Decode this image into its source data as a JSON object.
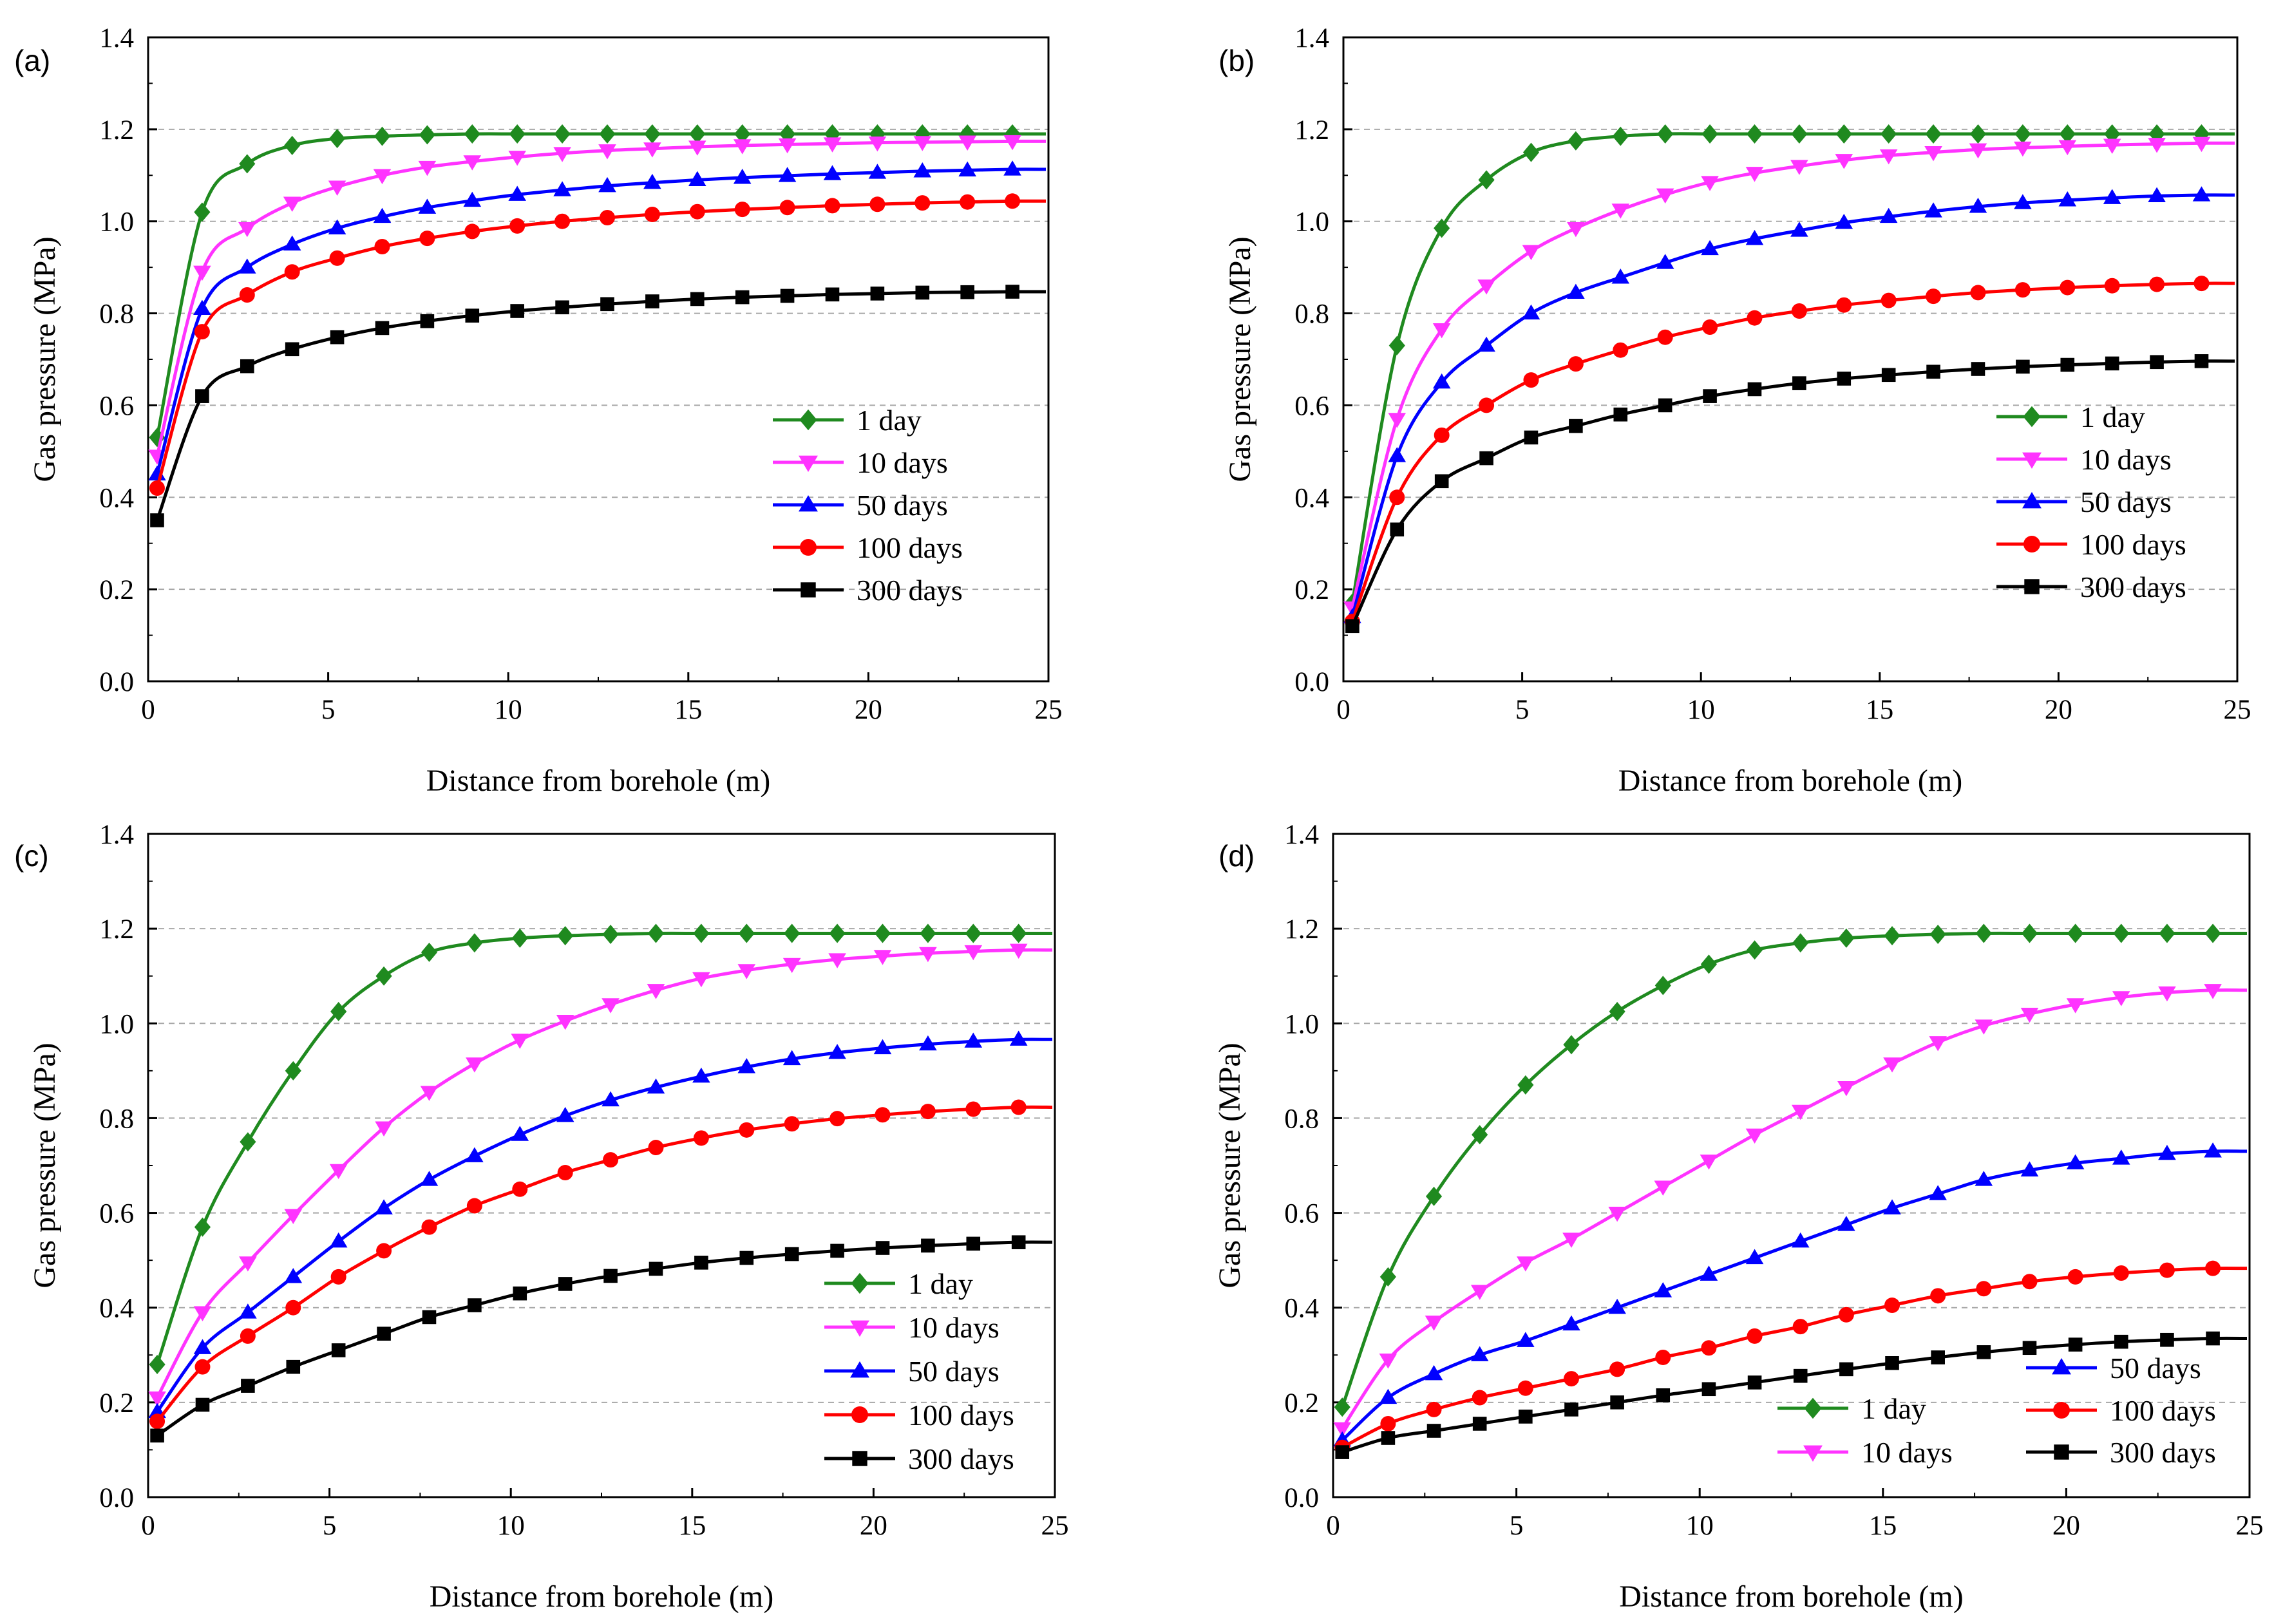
{
  "figure": {
    "series_styles": [
      {
        "name": "1 day",
        "color": "#1f8a1f",
        "marker": "diamond"
      },
      {
        "name": "10 days",
        "color": "#ff33ff",
        "marker": "triangle-down"
      },
      {
        "name": "50 days",
        "color": "#0000ff",
        "marker": "triangle-up"
      },
      {
        "name": "100 days",
        "color": "#ff0000",
        "marker": "circle"
      },
      {
        "name": "300 days",
        "color": "#000000",
        "marker": "square"
      }
    ]
  },
  "chart_data": [
    {
      "panel": "(a)",
      "type": "line",
      "xlabel": "Distance from borehole (m)",
      "ylabel": "Gas pressure (MPa)",
      "xlim": [
        0,
        25
      ],
      "ylim": [
        0,
        1.4
      ],
      "xticks": [
        "0",
        "5",
        "10",
        "15",
        "20",
        "25"
      ],
      "yticks": [
        "0.0",
        "0.2",
        "0.4",
        "0.6",
        "0.8",
        "1.0",
        "1.2",
        "1.4"
      ],
      "grid": "horizontal-dashed",
      "legend": {
        "position": "center-right",
        "layout": "column",
        "order": [
          "1 day",
          "10 days",
          "50 days",
          "100 days",
          "300 days"
        ]
      },
      "x": [
        0.25,
        1.5,
        2.75,
        4.0,
        5.25,
        6.5,
        7.75,
        9.0,
        10.25,
        11.5,
        12.75,
        14.0,
        15.25,
        16.5,
        17.75,
        19.0,
        20.25,
        21.5,
        22.75,
        24.0
      ],
      "series": [
        {
          "name": "1 day",
          "values": [
            0.53,
            1.02,
            1.125,
            1.165,
            1.18,
            1.185,
            1.188,
            1.19,
            1.19,
            1.19,
            1.19,
            1.19,
            1.19,
            1.19,
            1.19,
            1.19,
            1.19,
            1.19,
            1.19,
            1.19
          ]
        },
        {
          "name": "10 days",
          "values": [
            0.49,
            0.89,
            0.985,
            1.04,
            1.075,
            1.1,
            1.118,
            1.13,
            1.14,
            1.148,
            1.154,
            1.158,
            1.162,
            1.165,
            1.167,
            1.169,
            1.171,
            1.172,
            1.173,
            1.174
          ]
        },
        {
          "name": "50 days",
          "values": [
            0.45,
            0.81,
            0.9,
            0.95,
            0.985,
            1.01,
            1.03,
            1.045,
            1.058,
            1.068,
            1.077,
            1.084,
            1.09,
            1.095,
            1.099,
            1.103,
            1.106,
            1.109,
            1.111,
            1.113
          ]
        },
        {
          "name": "100 days",
          "values": [
            0.42,
            0.76,
            0.84,
            0.89,
            0.92,
            0.945,
            0.963,
            0.978,
            0.99,
            1.0,
            1.008,
            1.015,
            1.021,
            1.026,
            1.03,
            1.034,
            1.037,
            1.04,
            1.042,
            1.044
          ]
        },
        {
          "name": "300 days",
          "values": [
            0.35,
            0.62,
            0.685,
            0.722,
            0.748,
            0.768,
            0.783,
            0.795,
            0.805,
            0.813,
            0.82,
            0.826,
            0.831,
            0.835,
            0.838,
            0.841,
            0.843,
            0.845,
            0.846,
            0.847
          ]
        }
      ]
    },
    {
      "panel": "(b)",
      "type": "line",
      "xlabel": "Distance from borehole (m)",
      "ylabel": "Gas pressure (MPa)",
      "xlim": [
        0,
        25
      ],
      "ylim": [
        0,
        1.4
      ],
      "xticks": [
        "0",
        "5",
        "10",
        "15",
        "20",
        "25"
      ],
      "yticks": [
        "0.0",
        "0.2",
        "0.4",
        "0.6",
        "0.8",
        "1.0",
        "1.2",
        "1.4"
      ],
      "grid": "horizontal-dashed",
      "legend": {
        "position": "center-right",
        "layout": "column",
        "order": [
          "1 day",
          "10 days",
          "50 days",
          "100 days",
          "300 days"
        ]
      },
      "x": [
        0.25,
        1.5,
        2.75,
        4.0,
        5.25,
        6.5,
        7.75,
        9.0,
        10.25,
        11.5,
        12.75,
        14.0,
        15.25,
        16.5,
        17.75,
        19.0,
        20.25,
        21.5,
        22.75,
        24.0
      ],
      "series": [
        {
          "name": "1 day",
          "values": [
            0.17,
            0.73,
            0.985,
            1.09,
            1.15,
            1.175,
            1.185,
            1.19,
            1.19,
            1.19,
            1.19,
            1.19,
            1.19,
            1.19,
            1.19,
            1.19,
            1.19,
            1.19,
            1.19,
            1.19
          ]
        },
        {
          "name": "10 days",
          "values": [
            0.16,
            0.57,
            0.765,
            0.86,
            0.935,
            0.985,
            1.025,
            1.058,
            1.085,
            1.105,
            1.12,
            1.133,
            1.143,
            1.15,
            1.156,
            1.16,
            1.163,
            1.166,
            1.168,
            1.17
          ]
        },
        {
          "name": "50 days",
          "values": [
            0.14,
            0.49,
            0.65,
            0.73,
            0.8,
            0.845,
            0.878,
            0.91,
            0.94,
            0.962,
            0.98,
            0.997,
            1.01,
            1.022,
            1.032,
            1.04,
            1.046,
            1.051,
            1.055,
            1.057
          ]
        },
        {
          "name": "100 days",
          "values": [
            0.13,
            0.4,
            0.535,
            0.6,
            0.655,
            0.69,
            0.72,
            0.748,
            0.77,
            0.79,
            0.805,
            0.818,
            0.828,
            0.837,
            0.845,
            0.851,
            0.856,
            0.86,
            0.863,
            0.865
          ]
        },
        {
          "name": "300 days",
          "values": [
            0.12,
            0.33,
            0.435,
            0.485,
            0.53,
            0.555,
            0.58,
            0.6,
            0.62,
            0.635,
            0.648,
            0.658,
            0.666,
            0.673,
            0.679,
            0.684,
            0.688,
            0.691,
            0.694,
            0.696
          ]
        }
      ]
    },
    {
      "panel": "(c)",
      "type": "line",
      "xlabel": "Distance from borehole (m)",
      "ylabel": "Gas pressure (MPa)",
      "xlim": [
        0,
        25
      ],
      "ylim": [
        0,
        1.4
      ],
      "xticks": [
        "0",
        "5",
        "10",
        "15",
        "20",
        "25"
      ],
      "yticks": [
        "0.0",
        "0.2",
        "0.4",
        "0.6",
        "0.8",
        "1.0",
        "1.2",
        "1.4"
      ],
      "grid": "horizontal-dashed",
      "legend": {
        "position": "bottom-right",
        "layout": "column",
        "order": [
          "1 day",
          "10 days",
          "50 days",
          "100 days",
          "300 days"
        ]
      },
      "x": [
        0.25,
        1.5,
        2.75,
        4.0,
        5.25,
        6.5,
        7.75,
        9.0,
        10.25,
        11.5,
        12.75,
        14.0,
        15.25,
        16.5,
        17.75,
        19.0,
        20.25,
        21.5,
        22.75,
        24.0
      ],
      "series": [
        {
          "name": "1 day",
          "values": [
            0.28,
            0.57,
            0.75,
            0.9,
            1.025,
            1.1,
            1.15,
            1.17,
            1.18,
            1.185,
            1.188,
            1.19,
            1.19,
            1.19,
            1.19,
            1.19,
            1.19,
            1.19,
            1.19,
            1.19
          ]
        },
        {
          "name": "10 days",
          "values": [
            0.21,
            0.39,
            0.495,
            0.595,
            0.69,
            0.78,
            0.855,
            0.915,
            0.965,
            1.005,
            1.04,
            1.07,
            1.095,
            1.112,
            1.125,
            1.135,
            1.142,
            1.148,
            1.152,
            1.155
          ]
        },
        {
          "name": "50 days",
          "values": [
            0.18,
            0.315,
            0.39,
            0.465,
            0.54,
            0.61,
            0.67,
            0.72,
            0.765,
            0.805,
            0.838,
            0.865,
            0.888,
            0.908,
            0.925,
            0.938,
            0.948,
            0.956,
            0.962,
            0.966
          ]
        },
        {
          "name": "100 days",
          "values": [
            0.16,
            0.275,
            0.34,
            0.4,
            0.465,
            0.52,
            0.57,
            0.615,
            0.65,
            0.685,
            0.712,
            0.738,
            0.758,
            0.775,
            0.788,
            0.799,
            0.807,
            0.814,
            0.819,
            0.823
          ]
        },
        {
          "name": "300 days",
          "values": [
            0.13,
            0.195,
            0.235,
            0.275,
            0.31,
            0.345,
            0.38,
            0.405,
            0.43,
            0.45,
            0.467,
            0.482,
            0.495,
            0.505,
            0.513,
            0.52,
            0.526,
            0.531,
            0.535,
            0.538
          ]
        }
      ]
    },
    {
      "panel": "(d)",
      "type": "line",
      "xlabel": "Distance from borehole (m)",
      "ylabel": "Gas pressure (MPa)",
      "xlim": [
        0,
        25
      ],
      "ylim": [
        0,
        1.4
      ],
      "xticks": [
        "0",
        "5",
        "10",
        "15",
        "20",
        "25"
      ],
      "yticks": [
        "0.0",
        "0.2",
        "0.4",
        "0.6",
        "0.8",
        "1.0",
        "1.2",
        "1.4"
      ],
      "grid": "horizontal-dashed",
      "legend": {
        "position": "bottom-right",
        "layout": "two-column",
        "order": [
          "50 days",
          "1 day",
          "100 days",
          "10 days",
          "300 days"
        ]
      },
      "x": [
        0.25,
        1.5,
        2.75,
        4.0,
        5.25,
        6.5,
        7.75,
        9.0,
        10.25,
        11.5,
        12.75,
        14.0,
        15.25,
        16.5,
        17.75,
        19.0,
        20.25,
        21.5,
        22.75,
        24.0
      ],
      "series": [
        {
          "name": "1 day",
          "values": [
            0.19,
            0.465,
            0.635,
            0.765,
            0.87,
            0.955,
            1.025,
            1.08,
            1.125,
            1.155,
            1.17,
            1.18,
            1.185,
            1.188,
            1.19,
            1.19,
            1.19,
            1.19,
            1.19,
            1.19
          ]
        },
        {
          "name": "10 days",
          "values": [
            0.145,
            0.29,
            0.37,
            0.435,
            0.495,
            0.545,
            0.6,
            0.655,
            0.71,
            0.765,
            0.815,
            0.865,
            0.915,
            0.96,
            0.995,
            1.02,
            1.04,
            1.055,
            1.065,
            1.07
          ]
        },
        {
          "name": "50 days",
          "values": [
            0.12,
            0.21,
            0.26,
            0.3,
            0.33,
            0.365,
            0.4,
            0.435,
            0.47,
            0.505,
            0.54,
            0.575,
            0.61,
            0.64,
            0.67,
            0.69,
            0.705,
            0.715,
            0.725,
            0.73
          ]
        },
        {
          "name": "100 days",
          "values": [
            0.105,
            0.155,
            0.185,
            0.21,
            0.23,
            0.25,
            0.27,
            0.295,
            0.315,
            0.34,
            0.36,
            0.385,
            0.405,
            0.425,
            0.44,
            0.455,
            0.465,
            0.473,
            0.479,
            0.483
          ]
        },
        {
          "name": "300 days",
          "values": [
            0.095,
            0.125,
            0.14,
            0.155,
            0.17,
            0.185,
            0.2,
            0.215,
            0.228,
            0.242,
            0.256,
            0.27,
            0.283,
            0.295,
            0.306,
            0.315,
            0.322,
            0.328,
            0.332,
            0.335
          ]
        }
      ]
    }
  ]
}
